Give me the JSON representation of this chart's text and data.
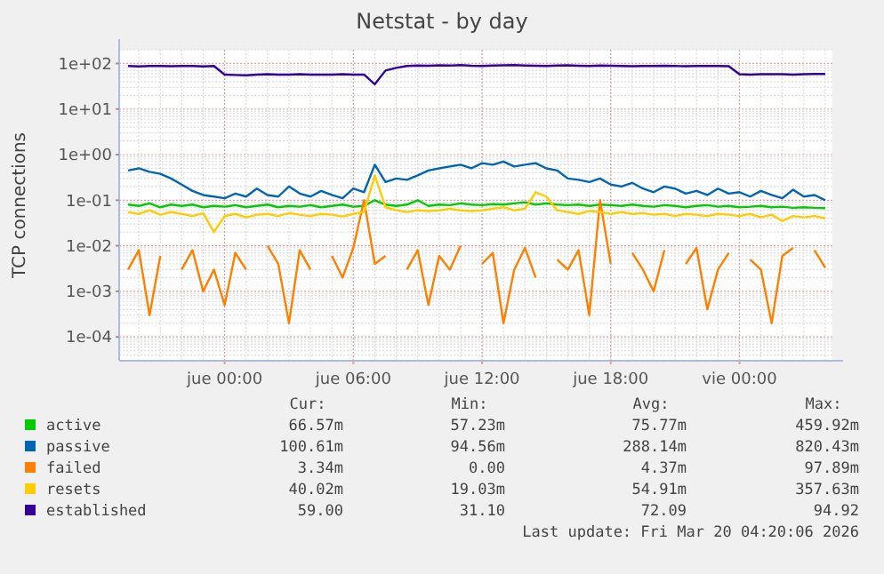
{
  "chart_data": {
    "type": "line",
    "title": "Netstat - by day",
    "ylabel": "TCP connections",
    "log": true,
    "grid": true,
    "legend": "bottom",
    "line_style": "solid",
    "marker": "none",
    "xlim": [
      "2026-03-18T19:05",
      "2026-03-20T04:20"
    ],
    "xticks": [
      {
        "value": "2026-03-19T00:00",
        "label": "jue 00:00"
      },
      {
        "value": "2026-03-19T06:00",
        "label": "jue 06:00"
      },
      {
        "value": "2026-03-19T12:00",
        "label": "jue 12:00"
      },
      {
        "value": "2026-03-19T18:00",
        "label": "jue 18:00"
      },
      {
        "value": "2026-03-20T00:00",
        "label": "vie 00:00"
      }
    ],
    "ylim": [
      3e-05,
      200
    ],
    "yticks": [
      {
        "value": 0.0001,
        "label": "1e-04"
      },
      {
        "value": 0.001,
        "label": "1e-03"
      },
      {
        "value": 0.01,
        "label": "1e-02"
      },
      {
        "value": 0.1,
        "label": "1e-01"
      },
      {
        "value": 1,
        "label": "1e+00"
      },
      {
        "value": 10,
        "label": "1e+01"
      },
      {
        "value": 100,
        "label": "1e+02"
      }
    ],
    "x": [
      "2026-03-18T19:30",
      "2026-03-18T20:00",
      "2026-03-18T20:30",
      "2026-03-18T21:00",
      "2026-03-18T21:30",
      "2026-03-18T22:00",
      "2026-03-18T22:30",
      "2026-03-18T23:00",
      "2026-03-18T23:30",
      "2026-03-19T00:00",
      "2026-03-19T00:30",
      "2026-03-19T01:00",
      "2026-03-19T01:30",
      "2026-03-19T02:00",
      "2026-03-19T02:30",
      "2026-03-19T03:00",
      "2026-03-19T03:30",
      "2026-03-19T04:00",
      "2026-03-19T04:30",
      "2026-03-19T05:00",
      "2026-03-19T05:30",
      "2026-03-19T06:00",
      "2026-03-19T06:30",
      "2026-03-19T07:00",
      "2026-03-19T07:30",
      "2026-03-19T08:00",
      "2026-03-19T08:30",
      "2026-03-19T09:00",
      "2026-03-19T09:30",
      "2026-03-19T10:00",
      "2026-03-19T10:30",
      "2026-03-19T11:00",
      "2026-03-19T11:30",
      "2026-03-19T12:00",
      "2026-03-19T12:30",
      "2026-03-19T13:00",
      "2026-03-19T13:30",
      "2026-03-19T14:00",
      "2026-03-19T14:30",
      "2026-03-19T15:00",
      "2026-03-19T15:30",
      "2026-03-19T16:00",
      "2026-03-19T16:30",
      "2026-03-19T17:00",
      "2026-03-19T17:30",
      "2026-03-19T18:00",
      "2026-03-19T18:30",
      "2026-03-19T19:00",
      "2026-03-19T19:30",
      "2026-03-19T20:00",
      "2026-03-19T20:30",
      "2026-03-19T21:00",
      "2026-03-19T21:30",
      "2026-03-19T22:00",
      "2026-03-19T22:30",
      "2026-03-19T23:00",
      "2026-03-19T23:30",
      "2026-03-20T00:00",
      "2026-03-20T00:30",
      "2026-03-20T01:00",
      "2026-03-20T01:30",
      "2026-03-20T02:00",
      "2026-03-20T02:30",
      "2026-03-20T03:00",
      "2026-03-20T03:30",
      "2026-03-20T04:00"
    ],
    "series": [
      {
        "name": "active",
        "color": "#00cc00",
        "values": [
          0.08,
          0.075,
          0.085,
          0.07,
          0.08,
          0.075,
          0.08,
          0.07,
          0.075,
          0.072,
          0.078,
          0.07,
          0.075,
          0.08,
          0.07,
          0.075,
          0.072,
          0.078,
          0.07,
          0.075,
          0.08,
          0.072,
          0.075,
          0.1,
          0.08,
          0.075,
          0.08,
          0.1,
          0.075,
          0.08,
          0.078,
          0.085,
          0.08,
          0.078,
          0.082,
          0.08,
          0.085,
          0.09,
          0.08,
          0.085,
          0.08,
          0.078,
          0.08,
          0.075,
          0.08,
          0.078,
          0.075,
          0.08,
          0.075,
          0.072,
          0.078,
          0.075,
          0.07,
          0.075,
          0.078,
          0.072,
          0.075,
          0.07,
          0.072,
          0.075,
          0.07,
          0.072,
          0.068,
          0.07,
          0.068,
          0.067
        ]
      },
      {
        "name": "passive",
        "color": "#0066b3",
        "values": [
          0.45,
          0.5,
          0.42,
          0.38,
          0.3,
          0.22,
          0.16,
          0.13,
          0.12,
          0.11,
          0.14,
          0.12,
          0.18,
          0.13,
          0.12,
          0.2,
          0.14,
          0.12,
          0.16,
          0.13,
          0.11,
          0.18,
          0.15,
          0.6,
          0.25,
          0.3,
          0.28,
          0.35,
          0.45,
          0.5,
          0.55,
          0.6,
          0.5,
          0.65,
          0.6,
          0.7,
          0.55,
          0.6,
          0.65,
          0.5,
          0.45,
          0.3,
          0.28,
          0.25,
          0.3,
          0.22,
          0.2,
          0.24,
          0.18,
          0.15,
          0.2,
          0.18,
          0.14,
          0.16,
          0.13,
          0.18,
          0.14,
          0.15,
          0.12,
          0.16,
          0.13,
          0.11,
          0.17,
          0.12,
          0.13,
          0.1
        ]
      },
      {
        "name": "failed",
        "color": "#ff8000",
        "values": [
          0.003,
          0.008,
          0.0003,
          0.006,
          null,
          0.003,
          0.008,
          0.001,
          0.003,
          0.0005,
          0.007,
          0.003,
          null,
          0.01,
          0.004,
          0.0002,
          0.008,
          0.003,
          null,
          0.006,
          0.002,
          0.009,
          0.1,
          0.004,
          0.006,
          null,
          0.003,
          0.008,
          0.0005,
          0.006,
          0.003,
          0.01,
          null,
          0.004,
          0.007,
          0.0002,
          0.003,
          0.009,
          0.002,
          null,
          0.005,
          0.003,
          0.008,
          0.0003,
          0.1,
          0.004,
          null,
          0.007,
          0.003,
          0.001,
          0.008,
          null,
          0.004,
          0.009,
          0.0004,
          0.003,
          0.007,
          null,
          0.005,
          0.003,
          0.0002,
          0.006,
          0.009,
          null,
          0.008,
          0.0033
        ]
      },
      {
        "name": "resets",
        "color": "#ffcc00",
        "values": [
          0.055,
          0.05,
          0.06,
          0.048,
          0.055,
          0.05,
          0.045,
          0.052,
          0.02,
          0.045,
          0.05,
          0.042,
          0.048,
          0.05,
          0.045,
          0.052,
          0.048,
          0.045,
          0.05,
          0.048,
          0.044,
          0.05,
          0.055,
          0.35,
          0.07,
          0.06,
          0.055,
          0.06,
          0.058,
          0.06,
          0.065,
          0.06,
          0.058,
          0.06,
          0.065,
          0.07,
          0.06,
          0.065,
          0.15,
          0.12,
          0.06,
          0.055,
          0.05,
          0.058,
          0.055,
          0.05,
          0.055,
          0.05,
          0.052,
          0.048,
          0.05,
          0.045,
          0.05,
          0.048,
          0.045,
          0.05,
          0.048,
          0.045,
          0.05,
          0.042,
          0.048,
          0.035,
          0.045,
          0.042,
          0.045,
          0.04
        ]
      },
      {
        "name": "established",
        "color": "#330099",
        "values": [
          88,
          86,
          88,
          88,
          87,
          88,
          88,
          86,
          88,
          57,
          56,
          55,
          57,
          58,
          57,
          57,
          58,
          57,
          57,
          57,
          58,
          57,
          57,
          35,
          70,
          80,
          88,
          90,
          89,
          91,
          90,
          92,
          89,
          88,
          90,
          91,
          92,
          90,
          89,
          88,
          90,
          91,
          89,
          88,
          90,
          89,
          88,
          87,
          88,
          88,
          89,
          88,
          87,
          88,
          88,
          88,
          87,
          58,
          57,
          58,
          58,
          58,
          57,
          58,
          59,
          59
        ]
      }
    ],
    "annotations": [
      "Cur:",
      "Min:",
      "Avg:",
      "Max:",
      "66.57m",
      "57.23m",
      "75.77m",
      "459.92m",
      "100.61m",
      "94.56m",
      "288.14m",
      "820.43m",
      "3.34m",
      "0.00",
      "4.37m",
      "97.89m",
      "40.02m",
      "19.03m",
      "54.91m",
      "357.63m",
      "59.00",
      "31.10",
      "72.09",
      "94.92",
      "Last update: Fri Mar 20 04:20:06 2026"
    ]
  }
}
